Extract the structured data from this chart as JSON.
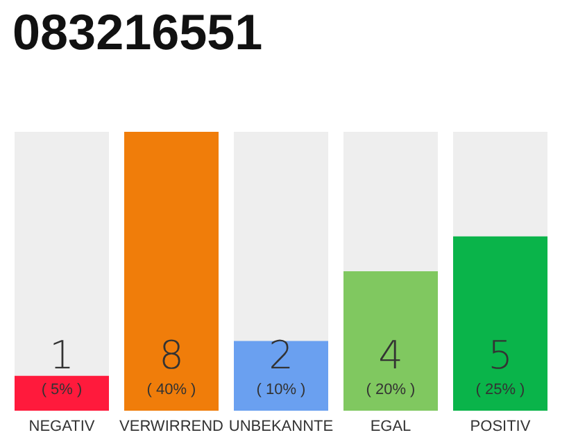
{
  "chart_data": {
    "type": "bar",
    "title": "083216551",
    "categories": [
      "NEGATIV",
      "VERWIRREND",
      "UNBEKANNTE",
      "EGAL",
      "POSITIV"
    ],
    "values": [
      1,
      8,
      2,
      4,
      5
    ],
    "colors": [
      "#ff1a3c",
      "#f07d0a",
      "#6aa0f0",
      "#80c860",
      "#0ab44a"
    ],
    "ylim": [
      0,
      8
    ],
    "data_labels": true,
    "annotations": [
      "( 5% )",
      "( 40% )",
      "( 10% )",
      "( 20% )",
      "( 25% )"
    ]
  }
}
